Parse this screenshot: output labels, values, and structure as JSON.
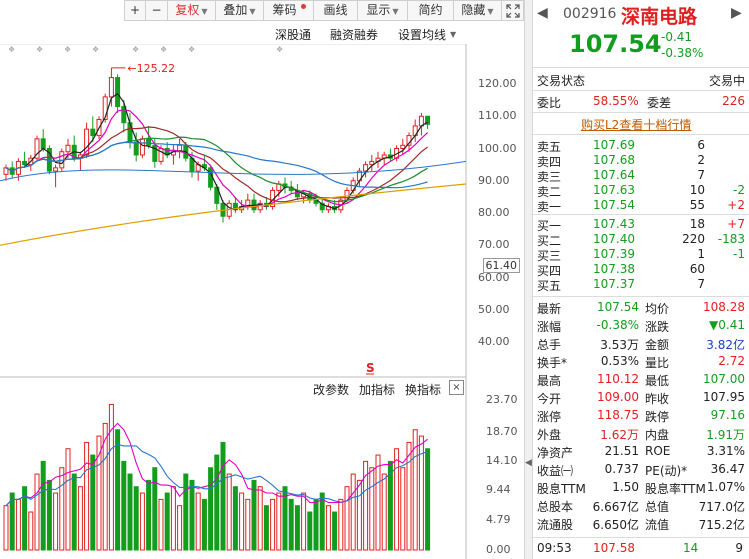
{
  "toolbar": {
    "buttons": [
      {
        "label": "+",
        "name": "zoom-in-button"
      },
      {
        "label": "−",
        "name": "zoom-out-button"
      },
      {
        "label": "复权",
        "name": "adjust-button",
        "dropdown": true,
        "active": true
      },
      {
        "label": "叠加",
        "name": "overlay-button",
        "dropdown": true
      },
      {
        "label": "筹码",
        "name": "chips-button",
        "dot": true
      },
      {
        "label": "画线",
        "name": "draw-line-button"
      },
      {
        "label": "显示",
        "name": "display-button",
        "dropdown": true
      },
      {
        "label": "简约",
        "name": "simple-mode-button"
      },
      {
        "label": "隐藏",
        "name": "hide-button",
        "dropdown": true
      }
    ],
    "expand_icon": "expand-icon"
  },
  "subbar": {
    "items": [
      "深股通",
      "融资融券",
      "设置均线"
    ]
  },
  "price_chart": {
    "high_annotation": "125.22",
    "price_axis": [
      "120.00",
      "110.00",
      "100.00",
      "90.00",
      "80.00",
      "70.00",
      "60.00",
      "50.00",
      "40.00"
    ],
    "current_price_tag": "61.40",
    "dividend_marker": "S"
  },
  "indicator_bar": {
    "items": [
      "改参数",
      "加指标",
      "换指标"
    ],
    "close_label": "×"
  },
  "volume_chart": {
    "volume_axis": [
      "23.70",
      "18.70",
      "14.10",
      "9.44",
      "4.79",
      "0.00"
    ]
  },
  "quote": {
    "code": "002916",
    "name": "深南电路",
    "price": "107.54",
    "change": "-0.41",
    "change_pct": "-0.38%",
    "trade_status_label": "交易状态",
    "trade_status_value": "交易中",
    "weibi_label": "委比",
    "weibi_value": "58.55%",
    "weicha_label": "委差",
    "weicha_value": "226",
    "l2_link": "购买L2查看十档行情",
    "asks": [
      {
        "label": "卖五",
        "price": "107.69",
        "vol": "6",
        "chg": ""
      },
      {
        "label": "卖四",
        "price": "107.68",
        "vol": "2",
        "chg": ""
      },
      {
        "label": "卖三",
        "price": "107.64",
        "vol": "7",
        "chg": ""
      },
      {
        "label": "卖二",
        "price": "107.63",
        "vol": "10",
        "chg": "-2"
      },
      {
        "label": "卖一",
        "price": "107.54",
        "vol": "55",
        "chg": "+2"
      }
    ],
    "bids": [
      {
        "label": "买一",
        "price": "107.43",
        "vol": "18",
        "chg": "+7"
      },
      {
        "label": "买二",
        "price": "107.40",
        "vol": "220",
        "chg": "-183"
      },
      {
        "label": "买三",
        "price": "107.39",
        "vol": "1",
        "chg": "-1"
      },
      {
        "label": "买四",
        "price": "107.38",
        "vol": "60",
        "chg": ""
      },
      {
        "label": "买五",
        "price": "107.37",
        "vol": "7",
        "chg": ""
      }
    ],
    "stats": [
      {
        "l1": "最新",
        "v1": "107.54",
        "c1": "down",
        "l2": "均价",
        "v2": "108.28",
        "c2": "up"
      },
      {
        "l1": "涨幅",
        "v1": "-0.38%",
        "c1": "down",
        "l2": "涨跌",
        "v2": "▼0.41",
        "c2": "down"
      },
      {
        "l1": "总手",
        "v1": "3.53万",
        "c1": "",
        "l2": "金额",
        "v2": "3.82亿",
        "c2": "blue"
      },
      {
        "l1": "换手*",
        "v1": "0.53%",
        "c1": "",
        "l2": "量比",
        "v2": "2.72",
        "c2": "up"
      },
      {
        "l1": "最高",
        "v1": "110.12",
        "c1": "up",
        "l2": "最低",
        "v2": "107.00",
        "c2": "down"
      },
      {
        "l1": "今开",
        "v1": "109.00",
        "c1": "up",
        "l2": "昨收",
        "v2": "107.95",
        "c2": ""
      },
      {
        "l1": "涨停",
        "v1": "118.75",
        "c1": "up",
        "l2": "跌停",
        "v2": "97.16",
        "c2": "down"
      },
      {
        "l1": "外盘",
        "v1": "1.62万",
        "c1": "up",
        "l2": "内盘",
        "v2": "1.91万",
        "c2": "down"
      },
      {
        "l1": "净资产",
        "v1": "21.51",
        "c1": "",
        "l2": "ROE",
        "v2": "3.31%",
        "c2": ""
      },
      {
        "l1": "收益㈠",
        "v1": "0.737",
        "c1": "",
        "l2": "PE(动)*",
        "v2": "36.47",
        "c2": ""
      },
      {
        "l1": "股息TTM",
        "v1": "1.50",
        "c1": "",
        "l2": "股息率TTM",
        "v2": "1.07%",
        "c2": ""
      },
      {
        "l1": "总股本",
        "v1": "6.667亿",
        "c1": "",
        "l2": "总值",
        "v2": "717.0亿",
        "c2": ""
      },
      {
        "l1": "流通股",
        "v1": "6.650亿",
        "c1": "",
        "l2": "流值",
        "v2": "715.2亿",
        "c2": ""
      }
    ],
    "tick": {
      "time": "09:53",
      "price": "107.58",
      "vol": "14",
      "num": "9"
    }
  },
  "colors": {
    "up": "#e02020",
    "down": "#139d1e",
    "blue": "#1a3fbf",
    "ma5": "#222222",
    "ma10": "#e000c0",
    "ma20": "#9e2b2b",
    "ma30": "#1e8c2a",
    "ma60": "#2a76c9",
    "ma120": "#e0a000"
  }
}
